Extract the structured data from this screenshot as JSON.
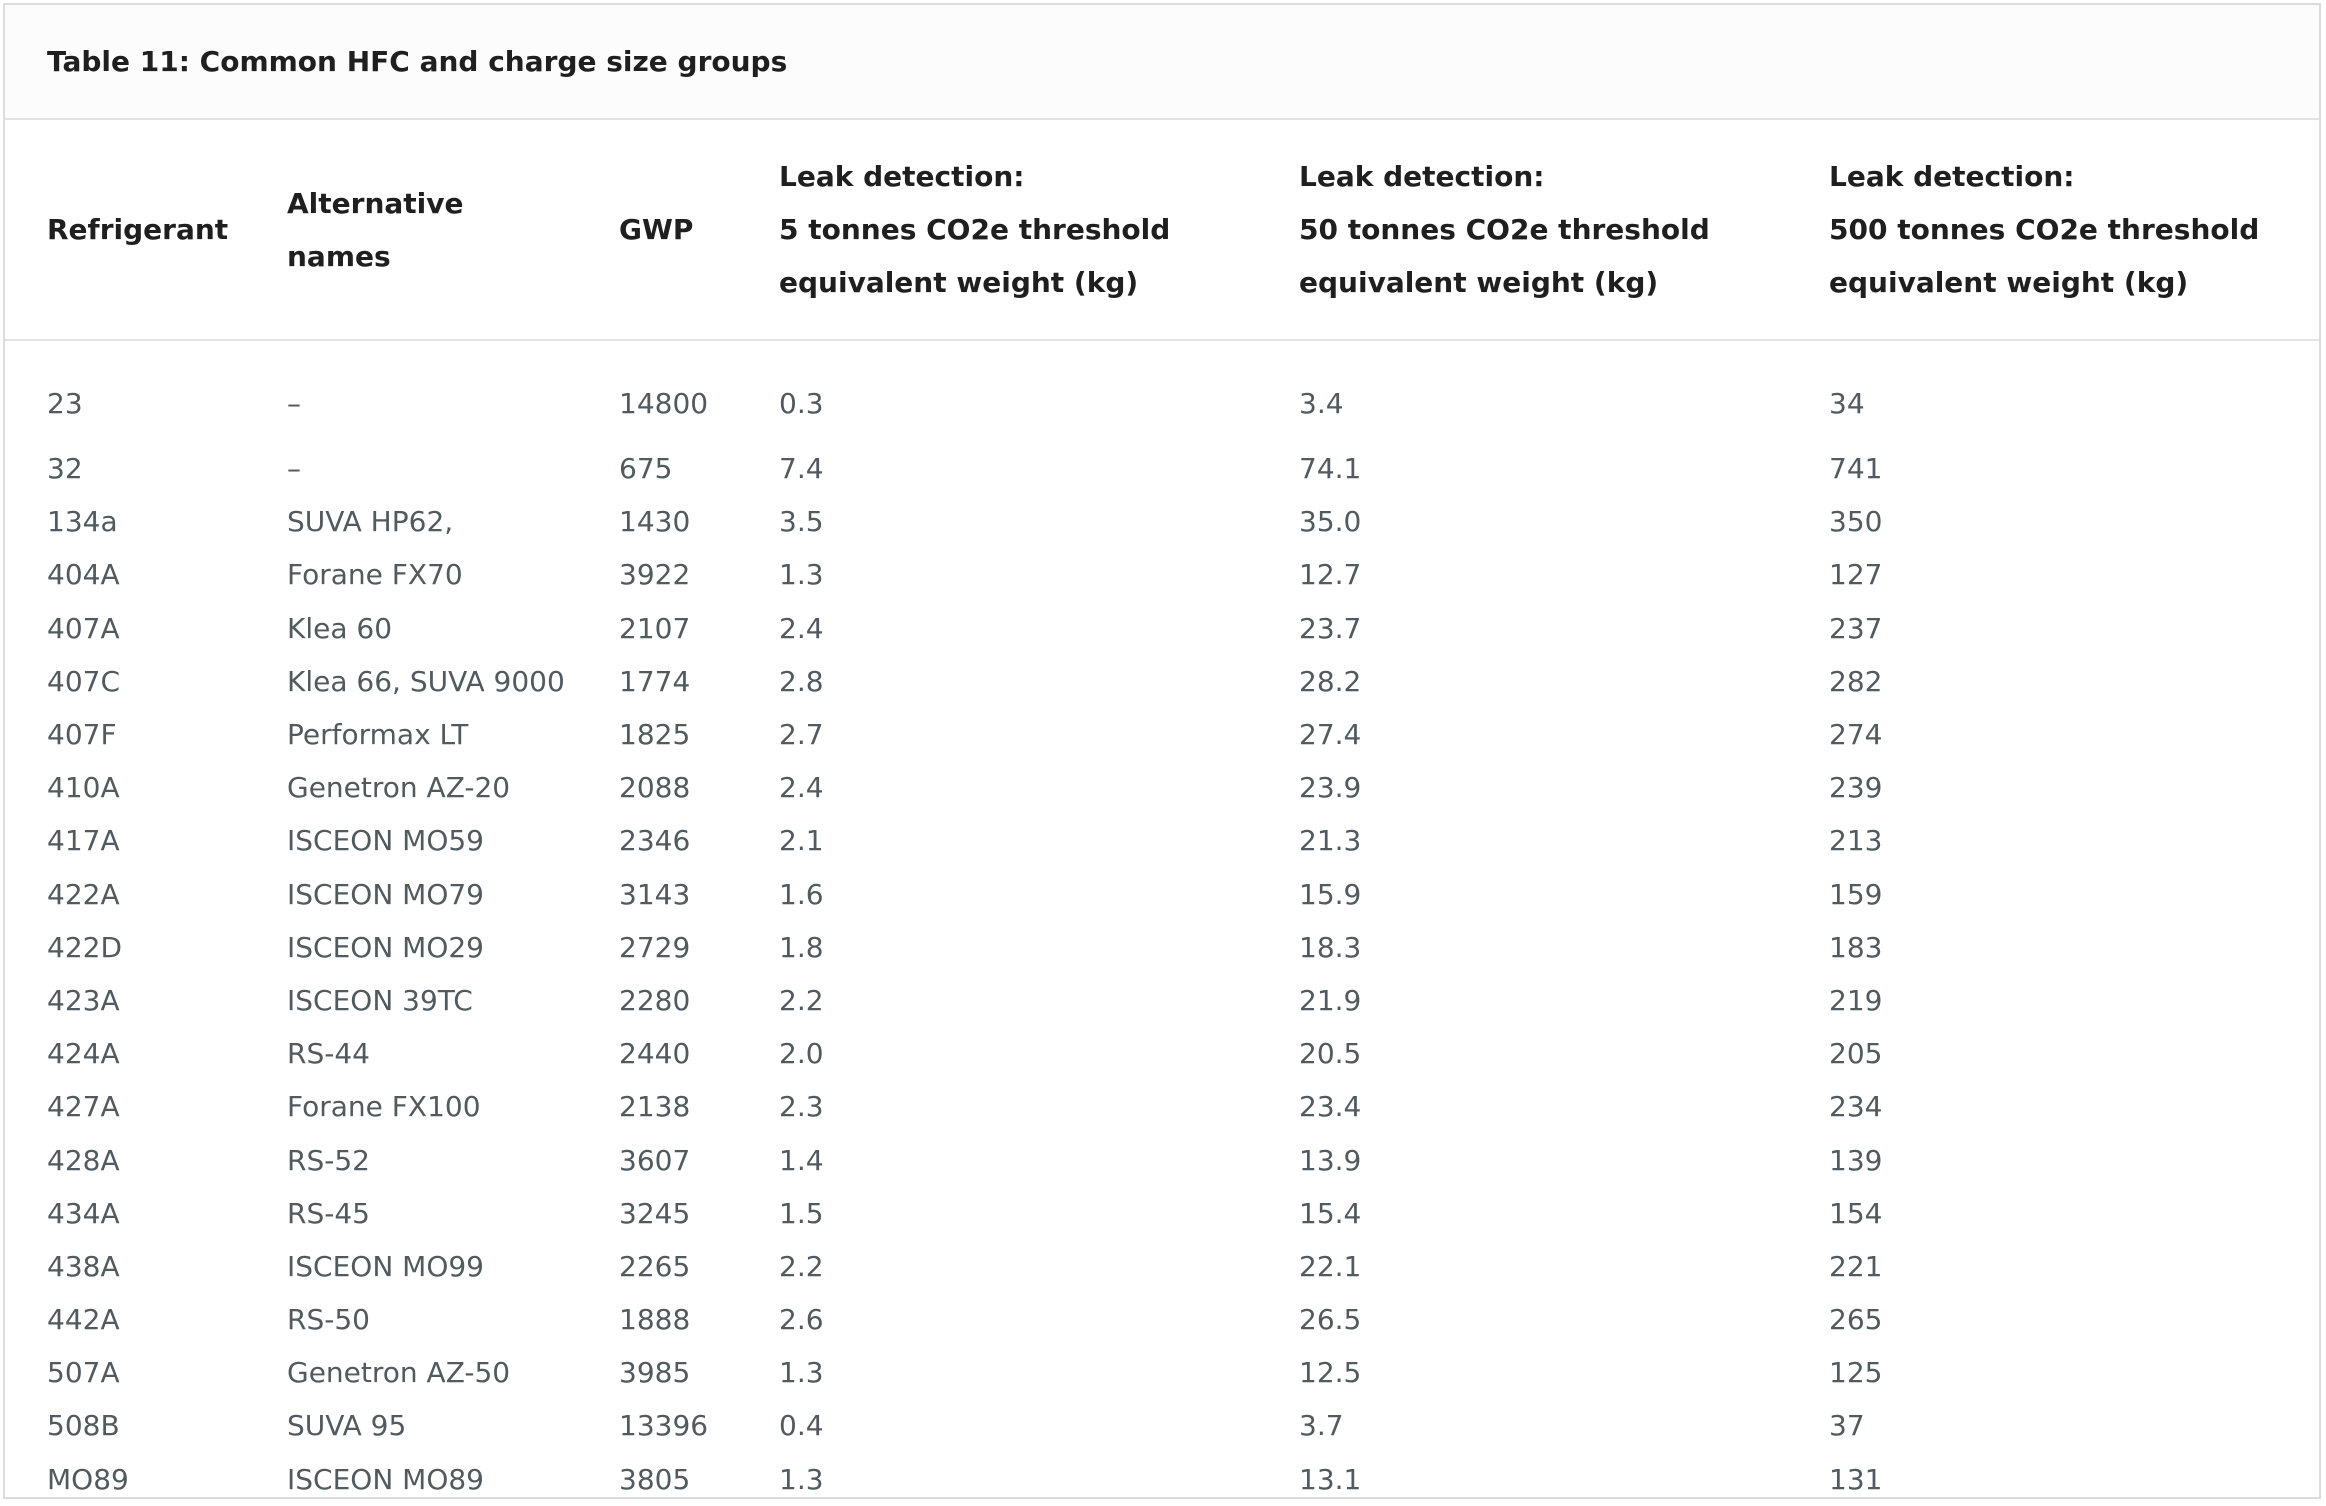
{
  "caption": "Table 11: Common HFC and charge size groups",
  "headers": [
    [
      "Refrigerant"
    ],
    [
      "Alternative",
      "names"
    ],
    [
      "GWP"
    ],
    [
      "Leak detection:",
      "5 tonnes CO2e threshold",
      "equivalent weight (kg)"
    ],
    [
      "Leak detection:",
      "50 tonnes CO2e threshold",
      "equivalent weight (kg)"
    ],
    [
      "Leak detection:",
      "500 tonnes CO2e threshold",
      "equivalent weight (kg)"
    ]
  ],
  "rows": [
    [
      "23",
      "–",
      "14800",
      "0.3",
      "3.4",
      "34"
    ],
    [
      "32",
      "–",
      "675",
      "7.4",
      "74.1",
      "741"
    ],
    [
      "134a",
      "SUVA HP62,",
      "1430",
      "3.5",
      "35.0",
      "350"
    ],
    [
      "404A",
      "Forane FX70",
      "3922",
      "1.3",
      "12.7",
      "127"
    ],
    [
      "407A",
      "Klea 60",
      "2107",
      "2.4",
      "23.7",
      "237"
    ],
    [
      "407C",
      "Klea 66, SUVA 9000",
      "1774",
      "2.8",
      "28.2",
      "282"
    ],
    [
      "407F",
      "Performax LT",
      "1825",
      "2.7",
      "27.4",
      "274"
    ],
    [
      "410A",
      "Genetron AZ-20",
      "2088",
      "2.4",
      "23.9",
      "239"
    ],
    [
      "417A",
      "ISCEON MO59",
      "2346",
      "2.1",
      "21.3",
      "213"
    ],
    [
      "422A",
      "ISCEON MO79",
      "3143",
      "1.6",
      "15.9",
      "159"
    ],
    [
      "422D",
      "ISCEON MO29",
      "2729",
      "1.8",
      "18.3",
      "183"
    ],
    [
      "423A",
      "ISCEON 39TC",
      "2280",
      "2.2",
      "21.9",
      "219"
    ],
    [
      "424A",
      "RS-44",
      "2440",
      "2.0",
      "20.5",
      "205"
    ],
    [
      "427A",
      "Forane FX100",
      "2138",
      "2.3",
      "23.4",
      "234"
    ],
    [
      "428A",
      "RS-52",
      "3607",
      "1.4",
      "13.9",
      "139"
    ],
    [
      "434A",
      "RS-45",
      "3245",
      "1.5",
      "15.4",
      "154"
    ],
    [
      "438A",
      "ISCEON MO99",
      "2265",
      "2.2",
      "22.1",
      "221"
    ],
    [
      "442A",
      "RS-50",
      "1888",
      "2.6",
      "26.5",
      "265"
    ],
    [
      "507A",
      "Genetron AZ-50",
      "3985",
      "1.3",
      "12.5",
      "125"
    ],
    [
      "508B",
      "SUVA 95",
      "13396",
      "0.4",
      "3.7",
      "37"
    ],
    [
      "MO89",
      "ISCEON MO89",
      "3805",
      "1.3",
      "13.1",
      "131"
    ]
  ]
}
